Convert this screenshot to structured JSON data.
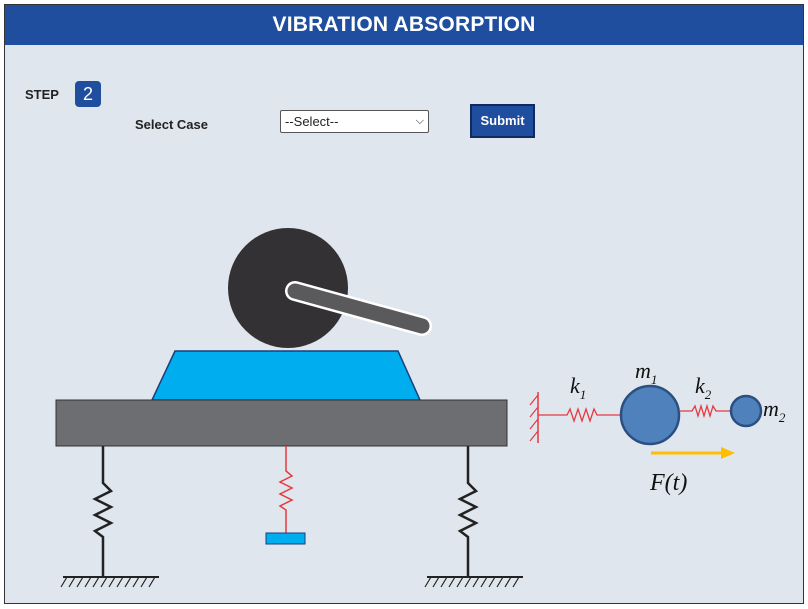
{
  "header": {
    "title": "VIBRATION ABSORPTION"
  },
  "step": {
    "label": "STEP",
    "number": "2"
  },
  "case_select": {
    "label": "Select Case",
    "value": "--Select--"
  },
  "submit": {
    "label": "Submit"
  },
  "diagram_labels": {
    "k1": "k",
    "k1_sub": "1",
    "m1": "m",
    "m1_sub": "1",
    "k2": "k",
    "k2_sub": "2",
    "m2": "m",
    "m2_sub": "2",
    "force": "F(t)"
  },
  "colors": {
    "header": "#1f4e9e",
    "platform": "#00adee",
    "base": "#6d6e71",
    "wheel": "#333133",
    "spring_red": "#e8383d",
    "mass": "#4f81bd",
    "arrow": "#ffbf00"
  }
}
